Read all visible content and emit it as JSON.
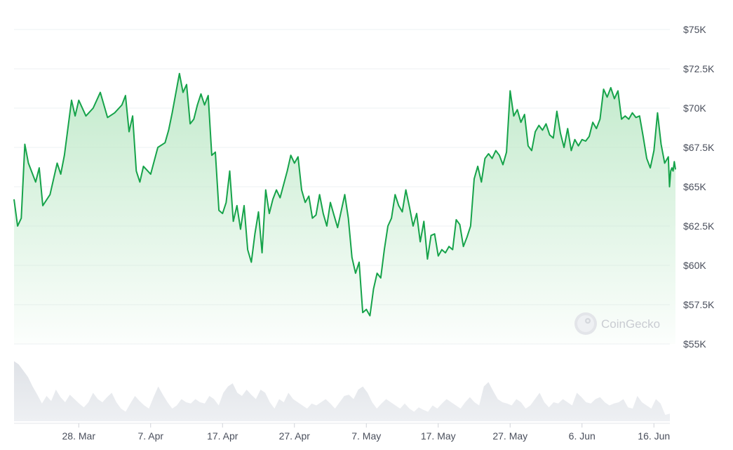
{
  "watermark": "CoinGecko",
  "colors": {
    "line": "#16a34a",
    "area_top": "#bfe9c9",
    "volume": "#e6e8ec"
  },
  "chart_data": {
    "type": "area",
    "title": "",
    "xlabel": "",
    "ylabel": "",
    "ylim": [
      55000,
      75000
    ],
    "xlim": [
      "2024-03-19",
      "2024-06-18"
    ],
    "y_ticks": [
      {
        "value": 75000,
        "label": "$75K"
      },
      {
        "value": 72500,
        "label": "$72.5K"
      },
      {
        "value": 70000,
        "label": "$70K"
      },
      {
        "value": 67500,
        "label": "$67.5K"
      },
      {
        "value": 65000,
        "label": "$65K"
      },
      {
        "value": 62500,
        "label": "$62.5K"
      },
      {
        "value": 60000,
        "label": "$60K"
      },
      {
        "value": 57500,
        "label": "$57.5K"
      },
      {
        "value": 55000,
        "label": "$55K"
      }
    ],
    "x_ticks": [
      {
        "date": "2024-03-28",
        "label": "28. Mar"
      },
      {
        "date": "2024-04-07",
        "label": "7. Apr"
      },
      {
        "date": "2024-04-17",
        "label": "17. Apr"
      },
      {
        "date": "2024-04-27",
        "label": "27. Apr"
      },
      {
        "date": "2024-05-07",
        "label": "7. May"
      },
      {
        "date": "2024-05-17",
        "label": "17. May"
      },
      {
        "date": "2024-05-27",
        "label": "27. May"
      },
      {
        "date": "2024-06-06",
        "label": "6. Jun"
      },
      {
        "date": "2024-06-16",
        "label": "16. Jun"
      }
    ],
    "grid": true,
    "series": [
      {
        "values": [
          [
            "2024-03-19",
            64200
          ],
          [
            "2024-03-19T12",
            62500
          ],
          [
            "2024-03-20",
            63000
          ],
          [
            "2024-03-20T12",
            67700
          ],
          [
            "2024-03-21",
            66500
          ],
          [
            "2024-03-22",
            65300
          ],
          [
            "2024-03-22T12",
            66200
          ],
          [
            "2024-03-23",
            63800
          ],
          [
            "2024-03-24",
            64500
          ],
          [
            "2024-03-25",
            66500
          ],
          [
            "2024-03-25T12",
            65800
          ],
          [
            "2024-03-26",
            67000
          ],
          [
            "2024-03-27",
            70500
          ],
          [
            "2024-03-27T12",
            69500
          ],
          [
            "2024-03-28",
            70500
          ],
          [
            "2024-03-29",
            69500
          ],
          [
            "2024-03-30",
            70000
          ],
          [
            "2024-03-31",
            71000
          ],
          [
            "2024-04-01",
            69400
          ],
          [
            "2024-04-02",
            69700
          ],
          [
            "2024-04-03",
            70200
          ],
          [
            "2024-04-03T12",
            70800
          ],
          [
            "2024-04-04",
            68500
          ],
          [
            "2024-04-04T12",
            69500
          ],
          [
            "2024-04-05",
            66000
          ],
          [
            "2024-04-05T12",
            65300
          ],
          [
            "2024-04-06",
            66300
          ],
          [
            "2024-04-07",
            65800
          ],
          [
            "2024-04-08",
            67500
          ],
          [
            "2024-04-09",
            67800
          ],
          [
            "2024-04-09T12",
            68600
          ],
          [
            "2024-04-10",
            69700
          ],
          [
            "2024-04-11",
            72200
          ],
          [
            "2024-04-11T12",
            71000
          ],
          [
            "2024-04-12",
            71500
          ],
          [
            "2024-04-12T12",
            69000
          ],
          [
            "2024-04-13",
            69300
          ],
          [
            "2024-04-13T12",
            70200
          ],
          [
            "2024-04-14",
            70900
          ],
          [
            "2024-04-14T12",
            70200
          ],
          [
            "2024-04-15",
            70800
          ],
          [
            "2024-04-15T12",
            67000
          ],
          [
            "2024-04-16",
            67200
          ],
          [
            "2024-04-16T12",
            63500
          ],
          [
            "2024-04-17",
            63300
          ],
          [
            "2024-04-17T12",
            64000
          ],
          [
            "2024-04-18",
            66000
          ],
          [
            "2024-04-18T12",
            62800
          ],
          [
            "2024-04-19",
            63800
          ],
          [
            "2024-04-19T12",
            62300
          ],
          [
            "2024-04-20",
            63800
          ],
          [
            "2024-04-20T12",
            61000
          ],
          [
            "2024-04-21",
            60200
          ],
          [
            "2024-04-21T12",
            62000
          ],
          [
            "2024-04-22",
            63400
          ],
          [
            "2024-04-22T12",
            60800
          ],
          [
            "2024-04-23",
            64800
          ],
          [
            "2024-04-23T12",
            63300
          ],
          [
            "2024-04-24",
            64200
          ],
          [
            "2024-04-24T12",
            64800
          ],
          [
            "2024-04-25",
            64300
          ],
          [
            "2024-04-26",
            66000
          ],
          [
            "2024-04-26T12",
            67000
          ],
          [
            "2024-04-27",
            66500
          ],
          [
            "2024-04-27T12",
            66900
          ],
          [
            "2024-04-28",
            64800
          ],
          [
            "2024-04-28T12",
            64000
          ],
          [
            "2024-04-29",
            64400
          ],
          [
            "2024-04-29T12",
            63000
          ],
          [
            "2024-04-30",
            63200
          ],
          [
            "2024-04-30T12",
            64500
          ],
          [
            "2024-05-01",
            63300
          ],
          [
            "2024-05-01T12",
            62500
          ],
          [
            "2024-05-02",
            64000
          ],
          [
            "2024-05-02T12",
            63200
          ],
          [
            "2024-05-03",
            62400
          ],
          [
            "2024-05-04",
            64500
          ],
          [
            "2024-05-04T12",
            63000
          ],
          [
            "2024-05-05",
            60500
          ],
          [
            "2024-05-05T12",
            59500
          ],
          [
            "2024-05-06",
            60200
          ],
          [
            "2024-05-06T12",
            57000
          ],
          [
            "2024-05-07",
            57200
          ],
          [
            "2024-05-07T12",
            56800
          ],
          [
            "2024-05-08",
            58500
          ],
          [
            "2024-05-08T12",
            59500
          ],
          [
            "2024-05-09",
            59200
          ],
          [
            "2024-05-09T12",
            61000
          ],
          [
            "2024-05-10",
            62500
          ],
          [
            "2024-05-10T12",
            63000
          ],
          [
            "2024-05-11",
            64500
          ],
          [
            "2024-05-11T12",
            63800
          ],
          [
            "2024-05-12",
            63400
          ],
          [
            "2024-05-12T12",
            64800
          ],
          [
            "2024-05-13",
            63700
          ],
          [
            "2024-05-13T12",
            62500
          ],
          [
            "2024-05-14",
            63300
          ],
          [
            "2024-05-14T12",
            61500
          ],
          [
            "2024-05-15",
            62800
          ],
          [
            "2024-05-15T12",
            60400
          ],
          [
            "2024-05-16",
            61900
          ],
          [
            "2024-05-16T12",
            62000
          ],
          [
            "2024-05-17",
            60600
          ],
          [
            "2024-05-17T12",
            61000
          ],
          [
            "2024-05-18",
            60800
          ],
          [
            "2024-05-18T12",
            61200
          ],
          [
            "2024-05-19",
            61000
          ],
          [
            "2024-05-19T12",
            62900
          ],
          [
            "2024-05-20",
            62600
          ],
          [
            "2024-05-20T12",
            61200
          ],
          [
            "2024-05-21",
            61800
          ],
          [
            "2024-05-21T12",
            62500
          ],
          [
            "2024-05-22",
            65500
          ],
          [
            "2024-05-22T12",
            66300
          ],
          [
            "2024-05-23",
            65300
          ],
          [
            "2024-05-23T12",
            66800
          ],
          [
            "2024-05-24",
            67100
          ],
          [
            "2024-05-24T12",
            66800
          ],
          [
            "2024-05-25",
            67300
          ],
          [
            "2024-05-25T12",
            67000
          ],
          [
            "2024-05-26",
            66400
          ],
          [
            "2024-05-26T12",
            67200
          ],
          [
            "2024-05-27",
            71100
          ],
          [
            "2024-05-27T12",
            69500
          ],
          [
            "2024-05-28",
            69900
          ],
          [
            "2024-05-28T12",
            69100
          ],
          [
            "2024-05-29",
            69600
          ],
          [
            "2024-05-29T12",
            67600
          ],
          [
            "2024-05-30",
            67300
          ],
          [
            "2024-05-30T12",
            68500
          ],
          [
            "2024-05-31",
            68900
          ],
          [
            "2024-05-31T12",
            68600
          ],
          [
            "2024-06-01",
            69000
          ],
          [
            "2024-06-01T12",
            68300
          ],
          [
            "2024-06-02",
            68100
          ],
          [
            "2024-06-02T12",
            69800
          ],
          [
            "2024-06-03",
            68400
          ],
          [
            "2024-06-03T12",
            67500
          ],
          [
            "2024-06-04",
            68700
          ],
          [
            "2024-06-04T12",
            67300
          ],
          [
            "2024-06-05",
            68000
          ],
          [
            "2024-06-05T12",
            67600
          ],
          [
            "2024-06-06",
            68000
          ],
          [
            "2024-06-06T12",
            67900
          ],
          [
            "2024-06-07",
            68200
          ],
          [
            "2024-06-07T12",
            69100
          ],
          [
            "2024-06-08",
            68700
          ],
          [
            "2024-06-08T12",
            69300
          ],
          [
            "2024-06-09",
            71200
          ],
          [
            "2024-06-09T12",
            70700
          ],
          [
            "2024-06-10",
            71300
          ],
          [
            "2024-06-10T12",
            70600
          ],
          [
            "2024-06-11",
            71100
          ],
          [
            "2024-06-11T12",
            69300
          ],
          [
            "2024-06-12",
            69500
          ],
          [
            "2024-06-12T12",
            69300
          ],
          [
            "2024-06-13",
            69700
          ],
          [
            "2024-06-13T12",
            69400
          ],
          [
            "2024-06-14",
            69500
          ],
          [
            "2024-06-14T12",
            68200
          ],
          [
            "2024-06-15",
            66800
          ],
          [
            "2024-06-15T12",
            66200
          ],
          [
            "2024-06-16",
            67300
          ],
          [
            "2024-06-16T12",
            69700
          ],
          [
            "2024-06-17",
            67700
          ],
          [
            "2024-06-17T12",
            66500
          ],
          [
            "2024-06-18",
            66900
          ],
          [
            "2024-06-18T04",
            65000
          ],
          [
            "2024-06-18T08",
            66000
          ],
          [
            "2024-06-18T12",
            66200
          ],
          [
            "2024-06-18T16",
            66000
          ],
          [
            "2024-06-18T20",
            66600
          ],
          [
            "2024-06-19",
            66100
          ]
        ]
      }
    ],
    "volume": [
      0.95,
      0.9,
      0.8,
      0.7,
      0.55,
      0.42,
      0.28,
      0.4,
      0.32,
      0.5,
      0.38,
      0.3,
      0.42,
      0.35,
      0.28,
      0.22,
      0.3,
      0.45,
      0.35,
      0.3,
      0.38,
      0.45,
      0.3,
      0.2,
      0.15,
      0.28,
      0.4,
      0.32,
      0.25,
      0.2,
      0.38,
      0.55,
      0.42,
      0.3,
      0.2,
      0.25,
      0.35,
      0.3,
      0.28,
      0.35,
      0.3,
      0.28,
      0.4,
      0.35,
      0.25,
      0.45,
      0.55,
      0.6,
      0.45,
      0.4,
      0.5,
      0.42,
      0.35,
      0.5,
      0.45,
      0.3,
      0.2,
      0.35,
      0.3,
      0.45,
      0.35,
      0.3,
      0.25,
      0.2,
      0.28,
      0.25,
      0.3,
      0.35,
      0.28,
      0.2,
      0.3,
      0.4,
      0.42,
      0.35,
      0.5,
      0.55,
      0.45,
      0.3,
      0.2,
      0.28,
      0.35,
      0.3,
      0.25,
      0.2,
      0.28,
      0.2,
      0.15,
      0.22,
      0.18,
      0.15,
      0.25,
      0.2,
      0.28,
      0.35,
      0.3,
      0.25,
      0.2,
      0.3,
      0.38,
      0.3,
      0.25,
      0.55,
      0.62,
      0.48,
      0.35,
      0.3,
      0.28,
      0.25,
      0.35,
      0.3,
      0.2,
      0.25,
      0.35,
      0.45,
      0.3,
      0.22,
      0.3,
      0.28,
      0.35,
      0.3,
      0.25,
      0.45,
      0.38,
      0.3,
      0.28,
      0.35,
      0.38,
      0.3,
      0.25,
      0.28,
      0.3,
      0.35,
      0.22,
      0.2,
      0.4,
      0.3,
      0.25,
      0.2,
      0.35,
      0.28,
      0.1,
      0.12
    ]
  }
}
